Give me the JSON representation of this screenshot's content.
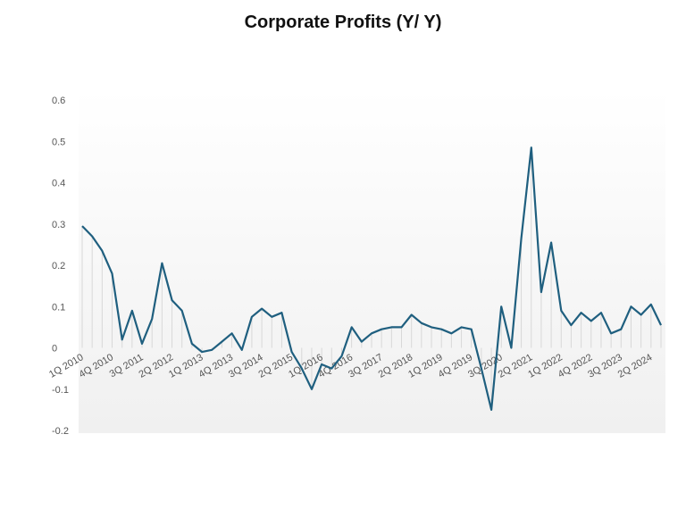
{
  "chart_data": {
    "type": "line",
    "title": "Corporate Profits (Y/ Y)",
    "xlabel": "",
    "ylabel": "",
    "ylim": [
      -0.2,
      0.6
    ],
    "y_ticks": [
      "0.6",
      "0.5",
      "0.4",
      "0.3",
      "0.2",
      "0.1",
      "0",
      "-0.1",
      "-0.2"
    ],
    "y_tick_values": [
      0.6,
      0.5,
      0.4,
      0.3,
      0.2,
      0.1,
      0,
      -0.1,
      -0.2
    ],
    "x_tick_labels": [
      "1Q 2010",
      "4Q 2010",
      "3Q 2011",
      "2Q 2012",
      "1Q 2013",
      "4Q 2013",
      "3Q 2014",
      "2Q 2015",
      "1Q 2016",
      "4Q 2016",
      "3Q 2017",
      "2Q 2018",
      "1Q 2019",
      "4Q 2019",
      "3Q 2020",
      "2Q 2021",
      "1Q 2022",
      "4Q 2022",
      "3Q 2023",
      "2Q 2024"
    ],
    "grid": true,
    "line_color": "#1f5f7f",
    "series": [
      {
        "values": [
          0.295,
          0.27,
          0.235,
          0.18,
          0.02,
          0.09,
          0.01,
          0.07,
          0.205,
          0.115,
          0.09,
          0.01,
          -0.01,
          -0.005,
          0.015,
          0.035,
          -0.005,
          0.075,
          0.095,
          0.075,
          0.085,
          -0.01,
          -0.05,
          -0.1,
          -0.04,
          -0.05,
          -0.02,
          0.05,
          0.015,
          0.035,
          0.045,
          0.05,
          0.05,
          0.08,
          0.06,
          0.05,
          0.045,
          0.035,
          0.05,
          0.045,
          -0.05,
          -0.15,
          0.1,
          0.0,
          0.265,
          0.485,
          0.135,
          0.255,
          0.09,
          0.055,
          0.085,
          0.065,
          0.085,
          0.035,
          0.045,
          0.1,
          0.08,
          0.105,
          0.055
        ]
      }
    ]
  }
}
